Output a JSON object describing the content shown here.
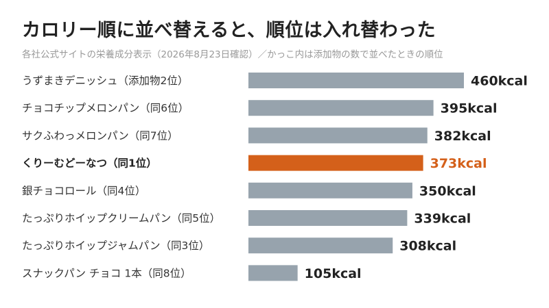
{
  "title": "カロリー順に並べ替えると、順位は入れ替わった",
  "subtitle": "各社公式サイトの栄養成分表示（2026年8月23日確認）／かっこ内は添加物の数で並べたときの順位",
  "colors": {
    "bar": "#97a3ad",
    "highlight": "#d4601a",
    "text": "#333333"
  },
  "chart_data": {
    "type": "bar",
    "orientation": "horizontal",
    "categories": [
      "うずまきデニッシュ（添加物2位）",
      "チョコチップメロンパン（同6位）",
      "サクふわっメロンパン（同7位）",
      "くりーむどーなつ（同1位）",
      "銀チョコロール（同4位）",
      "たっぷりホイップクリームパン（同5位）",
      "たっぷりホイップジャムパン（同3位）",
      "スナックパン チョコ 1本（同8位）"
    ],
    "values": [
      460,
      395,
      382,
      373,
      350,
      339,
      308,
      105
    ],
    "value_labels": [
      "460kcal",
      "395kcal",
      "382kcal",
      "373kcal",
      "350kcal",
      "339kcal",
      "308kcal",
      "105kcal"
    ],
    "highlight_index": 3,
    "xlim": [
      0,
      460
    ]
  }
}
